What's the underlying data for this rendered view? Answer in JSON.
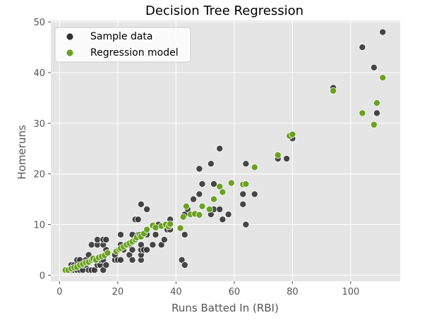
{
  "chart_data": {
    "type": "scatter",
    "title": "Decision Tree Regression",
    "xlabel": "Runs Batted In (RBI)",
    "ylabel": "Homeruns",
    "xlim": [
      -3,
      117
    ],
    "ylim": [
      -1.2,
      50.3
    ],
    "xticks": [
      0,
      20,
      40,
      60,
      80,
      100
    ],
    "yticks": [
      0,
      10,
      20,
      30,
      40,
      50
    ],
    "grid": true,
    "legend_position": "top-left",
    "colors": {
      "background": "#e5e5e5",
      "grid": "#ffffff",
      "sample": "#333333",
      "model": "#6aa121"
    },
    "series": [
      {
        "name": "Sample data",
        "key": "sample",
        "points": [
          [
            3,
            1
          ],
          [
            4,
            1
          ],
          [
            4,
            2
          ],
          [
            5,
            1
          ],
          [
            5,
            2
          ],
          [
            6,
            1
          ],
          [
            6,
            2
          ],
          [
            6,
            3
          ],
          [
            7,
            1
          ],
          [
            7,
            3
          ],
          [
            8,
            1
          ],
          [
            8,
            2
          ],
          [
            9,
            2
          ],
          [
            9,
            3
          ],
          [
            10,
            1
          ],
          [
            10,
            4
          ],
          [
            11,
            1
          ],
          [
            11,
            3
          ],
          [
            11,
            6
          ],
          [
            12,
            1
          ],
          [
            12,
            3
          ],
          [
            13,
            2
          ],
          [
            13,
            6
          ],
          [
            13,
            7
          ],
          [
            14,
            2
          ],
          [
            14,
            3
          ],
          [
            15,
            1
          ],
          [
            15,
            3
          ],
          [
            15,
            6
          ],
          [
            15,
            7
          ],
          [
            16,
            2
          ],
          [
            16,
            5
          ],
          [
            16,
            7
          ],
          [
            19,
            3
          ],
          [
            19,
            4
          ],
          [
            20,
            3
          ],
          [
            20,
            5
          ],
          [
            21,
            3
          ],
          [
            21,
            6
          ],
          [
            21,
            8
          ],
          [
            22,
            5
          ],
          [
            23,
            6
          ],
          [
            24,
            4
          ],
          [
            24,
            6
          ],
          [
            25,
            3
          ],
          [
            25,
            5
          ],
          [
            25,
            8
          ],
          [
            26,
            7
          ],
          [
            26,
            11
          ],
          [
            27,
            8
          ],
          [
            27,
            11
          ],
          [
            28,
            3
          ],
          [
            28,
            4
          ],
          [
            28,
            5
          ],
          [
            28,
            6
          ],
          [
            28,
            14
          ],
          [
            29,
            5
          ],
          [
            30,
            5
          ],
          [
            30,
            8
          ],
          [
            30,
            9
          ],
          [
            30,
            13
          ],
          [
            32,
            6
          ],
          [
            33,
            8
          ],
          [
            34,
            10
          ],
          [
            35,
            6
          ],
          [
            36,
            7
          ],
          [
            37,
            9
          ],
          [
            38,
            9
          ],
          [
            38,
            10
          ],
          [
            38,
            11
          ],
          [
            42,
            3
          ],
          [
            43,
            2
          ],
          [
            43,
            8
          ],
          [
            43,
            12
          ],
          [
            44,
            13
          ],
          [
            46,
            15
          ],
          [
            48,
            12
          ],
          [
            48,
            16
          ],
          [
            48,
            21
          ],
          [
            49,
            18
          ],
          [
            52,
            12
          ],
          [
            52,
            22
          ],
          [
            53,
            13
          ],
          [
            53,
            18
          ],
          [
            55,
            25
          ],
          [
            55,
            13
          ],
          [
            56,
            11
          ],
          [
            58,
            12
          ],
          [
            63,
            14
          ],
          [
            63,
            16
          ],
          [
            64,
            10
          ],
          [
            64,
            18
          ],
          [
            64,
            22
          ],
          [
            67,
            16
          ],
          [
            75,
            23
          ],
          [
            78,
            23
          ],
          [
            80,
            27
          ],
          [
            94,
            37
          ],
          [
            104,
            45
          ],
          [
            108,
            41
          ],
          [
            109,
            32
          ],
          [
            111,
            48
          ]
        ]
      },
      {
        "name": "Regression model",
        "key": "model",
        "points": [
          [
            2,
            1
          ],
          [
            3,
            1
          ],
          [
            4,
            1.3
          ],
          [
            5,
            1.5
          ],
          [
            6,
            1.6
          ],
          [
            7,
            2
          ],
          [
            8,
            2.2
          ],
          [
            9,
            2.5
          ],
          [
            10,
            2.6
          ],
          [
            11,
            3
          ],
          [
            11.5,
            3.3
          ],
          [
            12.5,
            3
          ],
          [
            13.5,
            3.5
          ],
          [
            14.5,
            3.7
          ],
          [
            15.5,
            3.9
          ],
          [
            16.5,
            4.4
          ],
          [
            19.5,
            4.7
          ],
          [
            20.5,
            5.1
          ],
          [
            21,
            5.3
          ],
          [
            22,
            5.6
          ],
          [
            23,
            6
          ],
          [
            24,
            6.3
          ],
          [
            25,
            6.6
          ],
          [
            26,
            7
          ],
          [
            26.5,
            7.4
          ],
          [
            27.5,
            8
          ],
          [
            28,
            7.6
          ],
          [
            29,
            8.2
          ],
          [
            30,
            9
          ],
          [
            32,
            9.8
          ],
          [
            33,
            9.4
          ],
          [
            35,
            9.7
          ],
          [
            36.5,
            10
          ],
          [
            37.5,
            9.6
          ],
          [
            38,
            10.1
          ],
          [
            41.5,
            9.3
          ],
          [
            42.5,
            11.5
          ],
          [
            43.5,
            13.6
          ],
          [
            45,
            12
          ],
          [
            46.5,
            12.1
          ],
          [
            48,
            11.9
          ],
          [
            49,
            13.6
          ],
          [
            51.5,
            13
          ],
          [
            53,
            15
          ],
          [
            55,
            17.5
          ],
          [
            56,
            16.4
          ],
          [
            59,
            18.2
          ],
          [
            63,
            17.9
          ],
          [
            64,
            18
          ],
          [
            67,
            21.3
          ],
          [
            75,
            23.7
          ],
          [
            79,
            27.5
          ],
          [
            80,
            27.8
          ],
          [
            94,
            36.4
          ],
          [
            104,
            32
          ],
          [
            108,
            29.7
          ],
          [
            109,
            34
          ],
          [
            111,
            39
          ]
        ]
      }
    ]
  }
}
